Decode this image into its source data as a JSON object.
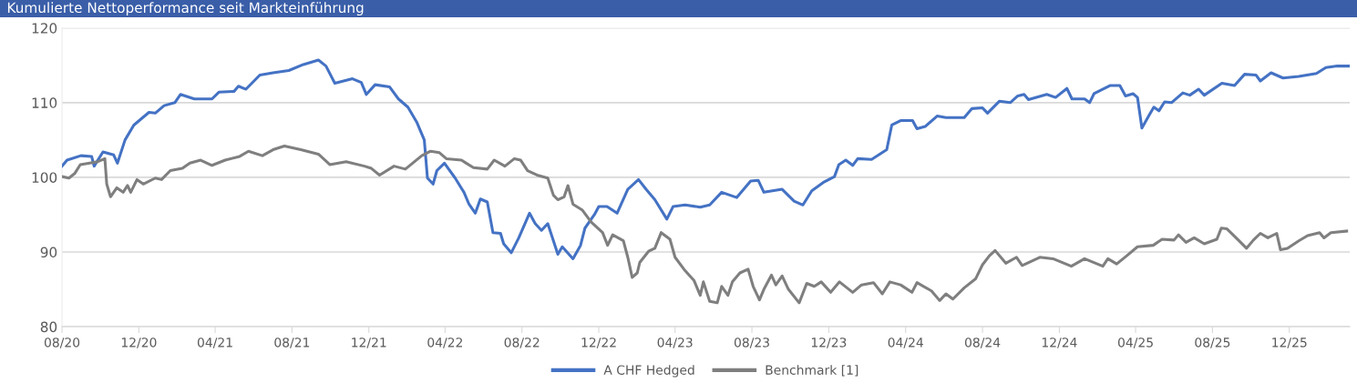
{
  "chart_data": {
    "type": "line",
    "title": "Kumulierte Nettoperformance seit Markteinführung",
    "xlim": [
      "2020-08-01",
      "2026-03-07"
    ],
    "ylim": [
      80,
      120
    ],
    "yticks": [
      80,
      90,
      100,
      110,
      120
    ],
    "xticks": [
      {
        "value": "2020-08-01",
        "label": "08/20"
      },
      {
        "value": "2020-12-01",
        "label": "12/20"
      },
      {
        "value": "2021-04-01",
        "label": "04/21"
      },
      {
        "value": "2021-08-01",
        "label": "08/21"
      },
      {
        "value": "2021-12-01",
        "label": "12/21"
      },
      {
        "value": "2022-04-01",
        "label": "04/22"
      },
      {
        "value": "2022-08-01",
        "label": "08/22"
      },
      {
        "value": "2022-12-01",
        "label": "12/22"
      },
      {
        "value": "2023-04-01",
        "label": "04/23"
      },
      {
        "value": "2023-08-01",
        "label": "08/23"
      },
      {
        "value": "2023-12-01",
        "label": "12/23"
      },
      {
        "value": "2024-04-01",
        "label": "04/24"
      },
      {
        "value": "2024-08-01",
        "label": "08/24"
      },
      {
        "value": "2024-12-01",
        "label": "12/24"
      },
      {
        "value": "2025-04-01",
        "label": "04/25"
      },
      {
        "value": "2025-08-01",
        "label": "08/25"
      },
      {
        "value": "2025-12-01",
        "label": "12/25"
      }
    ],
    "grid": "y",
    "legend": "bottom",
    "marker": "none",
    "line_style": "solid",
    "series": [
      {
        "name": "A CHF Hedged",
        "color": "#4472c4",
        "x": [
          "2020-08-01",
          "2020-08-09",
          "2020-08-31",
          "2020-09-17",
          "2020-09-21",
          "2020-10-05",
          "2020-10-22",
          "2020-10-28",
          "2020-11-09",
          "2020-11-23",
          "2020-12-17",
          "2020-12-27",
          "2021-01-10",
          "2021-01-27",
          "2021-02-05",
          "2021-02-27",
          "2021-03-27",
          "2021-04-07",
          "2021-05-01",
          "2021-05-08",
          "2021-05-20",
          "2021-06-11",
          "2021-07-02",
          "2021-07-27",
          "2021-08-19",
          "2021-09-12",
          "2021-09-24",
          "2021-10-08",
          "2021-11-05",
          "2021-11-19",
          "2021-11-27",
          "2021-12-11",
          "2022-01-03",
          "2022-01-17",
          "2022-02-01",
          "2022-02-15",
          "2022-02-27",
          "2022-03-04",
          "2022-03-13",
          "2022-03-19",
          "2022-03-31",
          "2022-04-17",
          "2022-05-01",
          "2022-05-09",
          "2022-05-19",
          "2022-05-27",
          "2022-06-07",
          "2022-06-16",
          "2022-06-28",
          "2022-07-03",
          "2022-07-15",
          "2022-07-27",
          "2022-08-13",
          "2022-08-22",
          "2022-09-01",
          "2022-09-11",
          "2022-09-27",
          "2022-10-04",
          "2022-10-21",
          "2022-11-02",
          "2022-11-09",
          "2022-11-24",
          "2022-12-01",
          "2022-12-14",
          "2022-12-30",
          "2023-01-16",
          "2023-02-02",
          "2023-02-14",
          "2023-02-28",
          "2023-03-19",
          "2023-03-29",
          "2023-04-17",
          "2023-05-11",
          "2023-05-26",
          "2023-06-14",
          "2023-07-08",
          "2023-07-30",
          "2023-08-11",
          "2023-08-20",
          "2023-09-18",
          "2023-10-07",
          "2023-10-21",
          "2023-11-04",
          "2023-11-22",
          "2023-12-10",
          "2023-12-17",
          "2023-12-28",
          "2024-01-08",
          "2024-01-16",
          "2024-02-07",
          "2024-03-02",
          "2024-03-10",
          "2024-03-24",
          "2024-04-12",
          "2024-04-19",
          "2024-05-02",
          "2024-05-21",
          "2024-06-04",
          "2024-07-03",
          "2024-07-15",
          "2024-08-01",
          "2024-08-09",
          "2024-08-28",
          "2024-09-14",
          "2024-09-26",
          "2024-10-06",
          "2024-10-13",
          "2024-11-11",
          "2024-11-25",
          "2024-12-13",
          "2024-12-21",
          "2025-01-10",
          "2025-01-18",
          "2025-01-25",
          "2025-02-20",
          "2025-03-07",
          "2025-03-16",
          "2025-03-28",
          "2025-04-04",
          "2025-04-11",
          "2025-04-23",
          "2025-04-30",
          "2025-05-08",
          "2025-05-17",
          "2025-05-28",
          "2025-06-15",
          "2025-06-26",
          "2025-07-10",
          "2025-07-19",
          "2025-08-16",
          "2025-09-05",
          "2025-09-21",
          "2025-10-09",
          "2025-10-16",
          "2025-11-02",
          "2025-11-21",
          "2025-12-16",
          "2026-01-13",
          "2026-01-28",
          "2026-02-15",
          "2026-03-05"
        ],
        "values": [
          101.5,
          102.3,
          102.9,
          102.8,
          101.5,
          103.4,
          103.0,
          101.9,
          105.0,
          107.0,
          108.7,
          108.6,
          109.6,
          110.0,
          111.1,
          110.5,
          110.5,
          111.4,
          111.5,
          112.2,
          111.8,
          113.7,
          114.0,
          114.3,
          115.1,
          115.7,
          114.9,
          112.6,
          113.2,
          112.7,
          111.1,
          112.4,
          112.1,
          110.5,
          109.4,
          107.4,
          105.0,
          99.9,
          99.1,
          100.9,
          101.9,
          99.9,
          98.0,
          96.4,
          95.2,
          97.1,
          96.7,
          92.6,
          92.5,
          91.1,
          89.9,
          91.9,
          95.2,
          93.8,
          92.9,
          93.8,
          89.7,
          90.7,
          89.1,
          90.9,
          93.2,
          95.0,
          96.1,
          96.1,
          95.2,
          98.4,
          99.7,
          98.4,
          97.0,
          94.4,
          96.1,
          96.3,
          96.0,
          96.3,
          98.0,
          97.3,
          99.5,
          99.6,
          98.0,
          98.4,
          96.8,
          96.3,
          98.2,
          99.3,
          100.1,
          101.7,
          102.3,
          101.6,
          102.5,
          102.4,
          103.7,
          107.0,
          107.6,
          107.6,
          106.5,
          106.8,
          108.2,
          108.0,
          108.0,
          109.2,
          109.3,
          108.6,
          110.2,
          110.0,
          110.9,
          111.1,
          110.4,
          111.1,
          110.7,
          111.9,
          110.5,
          110.5,
          110.0,
          111.2,
          112.3,
          112.3,
          110.9,
          111.2,
          110.7,
          106.6,
          108.4,
          109.4,
          108.9,
          110.1,
          110.0,
          111.3,
          111.0,
          111.8,
          111.0,
          112.6,
          112.3,
          113.8,
          113.7,
          112.9,
          114.0,
          113.3,
          113.5,
          113.9,
          114.7,
          114.9,
          114.9
        ]
      },
      {
        "name": "Benchmark [1]",
        "color": "#7f7f7f",
        "x": [
          "2020-08-01",
          "2020-08-12",
          "2020-08-21",
          "2020-08-30",
          "2020-09-27",
          "2020-10-08",
          "2020-10-11",
          "2020-10-17",
          "2020-10-27",
          "2020-11-06",
          "2020-11-13",
          "2020-11-18",
          "2020-11-28",
          "2020-12-08",
          "2020-12-27",
          "2021-01-06",
          "2021-01-20",
          "2021-02-08",
          "2021-02-20",
          "2021-03-09",
          "2021-03-27",
          "2021-04-17",
          "2021-05-10",
          "2021-05-24",
          "2021-06-15",
          "2021-07-02",
          "2021-07-20",
          "2021-08-15",
          "2021-09-12",
          "2021-09-30",
          "2021-10-26",
          "2021-11-24",
          "2021-12-05",
          "2021-12-18",
          "2022-01-10",
          "2022-01-28",
          "2022-02-23",
          "2022-03-09",
          "2022-03-23",
          "2022-04-03",
          "2022-04-27",
          "2022-05-16",
          "2022-06-07",
          "2022-06-18",
          "2022-07-05",
          "2022-07-20",
          "2022-07-30",
          "2022-08-10",
          "2022-08-25",
          "2022-09-11",
          "2022-09-20",
          "2022-09-27",
          "2022-10-07",
          "2022-10-13",
          "2022-10-21",
          "2022-11-05",
          "2022-11-19",
          "2022-12-07",
          "2022-12-15",
          "2022-12-23",
          "2023-01-09",
          "2023-01-16",
          "2023-01-23",
          "2023-01-31",
          "2023-02-04",
          "2023-02-18",
          "2023-02-28",
          "2023-03-10",
          "2023-03-24",
          "2023-04-01",
          "2023-04-17",
          "2023-05-01",
          "2023-05-11",
          "2023-05-16",
          "2023-05-26",
          "2023-06-07",
          "2023-06-14",
          "2023-06-24",
          "2023-07-01",
          "2023-07-13",
          "2023-07-26",
          "2023-08-03",
          "2023-08-13",
          "2023-08-20",
          "2023-09-01",
          "2023-09-08",
          "2023-09-18",
          "2023-09-28",
          "2023-10-15",
          "2023-10-27",
          "2023-11-08",
          "2023-11-19",
          "2023-12-04",
          "2023-12-18",
          "2024-01-08",
          "2024-01-22",
          "2024-02-10",
          "2024-02-24",
          "2024-03-07",
          "2024-03-24",
          "2024-04-11",
          "2024-04-19",
          "2024-05-12",
          "2024-05-25",
          "2024-06-04",
          "2024-06-15",
          "2024-07-03",
          "2024-07-21",
          "2024-08-01",
          "2024-08-12",
          "2024-08-21",
          "2024-09-07",
          "2024-09-24",
          "2024-10-03",
          "2024-10-31",
          "2024-11-21",
          "2024-12-20",
          "2025-01-10",
          "2025-02-08",
          "2025-02-16",
          "2025-03-02",
          "2025-03-18",
          "2025-04-04",
          "2025-04-29",
          "2025-05-13",
          "2025-06-01",
          "2025-06-08",
          "2025-06-20",
          "2025-07-03",
          "2025-07-19",
          "2025-08-08",
          "2025-08-15",
          "2025-08-24",
          "2025-09-10",
          "2025-09-24",
          "2025-10-05",
          "2025-10-16",
          "2025-10-28",
          "2025-11-11",
          "2025-11-17",
          "2025-11-28",
          "2025-12-16",
          "2025-12-30",
          "2026-01-18",
          "2026-01-25",
          "2026-02-05",
          "2026-03-02"
        ],
        "values": [
          100.1,
          99.9,
          100.5,
          101.7,
          102.1,
          102.5,
          99.1,
          97.4,
          98.6,
          98.0,
          98.9,
          98.0,
          99.7,
          99.1,
          99.9,
          99.7,
          100.9,
          101.2,
          101.9,
          102.3,
          101.6,
          102.3,
          102.8,
          103.5,
          102.9,
          103.7,
          104.2,
          103.7,
          103.1,
          101.7,
          102.1,
          101.5,
          101.2,
          100.3,
          101.5,
          101.1,
          102.9,
          103.5,
          103.3,
          102.5,
          102.3,
          101.3,
          101.1,
          102.3,
          101.5,
          102.5,
          102.3,
          100.9,
          100.3,
          99.9,
          97.6,
          97.0,
          97.4,
          98.9,
          96.4,
          95.6,
          94.0,
          92.6,
          90.9,
          92.3,
          91.5,
          89.3,
          86.6,
          87.2,
          88.6,
          90.1,
          90.5,
          92.6,
          91.7,
          89.3,
          87.5,
          86.2,
          84.2,
          86.0,
          83.4,
          83.2,
          85.4,
          84.2,
          86.0,
          87.2,
          87.7,
          85.4,
          83.6,
          85.0,
          86.9,
          85.6,
          86.8,
          85.0,
          83.2,
          85.8,
          85.4,
          86.0,
          84.6,
          86.0,
          84.6,
          85.6,
          85.9,
          84.4,
          86.0,
          85.6,
          84.6,
          85.9,
          84.8,
          83.5,
          84.4,
          83.7,
          85.2,
          86.4,
          88.3,
          89.5,
          90.2,
          88.5,
          89.3,
          88.2,
          89.3,
          89.1,
          88.1,
          89.1,
          88.1,
          89.1,
          88.4,
          89.5,
          90.7,
          90.9,
          91.7,
          91.6,
          92.3,
          91.3,
          91.9,
          91.1,
          91.7,
          93.2,
          93.1,
          91.7,
          90.5,
          91.6,
          92.5,
          91.9,
          92.5,
          90.3,
          90.5,
          91.5,
          92.2,
          92.6,
          91.9,
          92.6,
          92.8
        ]
      }
    ]
  }
}
